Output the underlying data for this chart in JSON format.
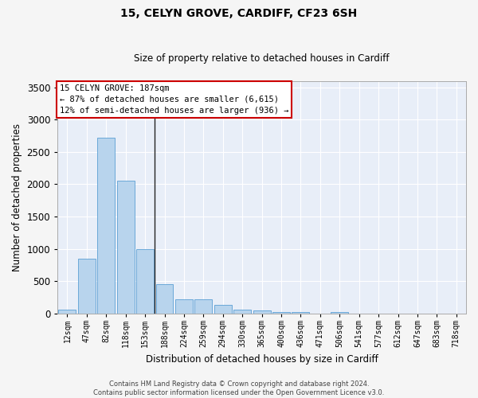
{
  "title": "15, CELYN GROVE, CARDIFF, CF23 6SH",
  "subtitle": "Size of property relative to detached houses in Cardiff",
  "xlabel": "Distribution of detached houses by size in Cardiff",
  "ylabel": "Number of detached properties",
  "categories": [
    "12sqm",
    "47sqm",
    "82sqm",
    "118sqm",
    "153sqm",
    "188sqm",
    "224sqm",
    "259sqm",
    "294sqm",
    "330sqm",
    "365sqm",
    "400sqm",
    "436sqm",
    "471sqm",
    "506sqm",
    "541sqm",
    "577sqm",
    "612sqm",
    "647sqm",
    "683sqm",
    "718sqm"
  ],
  "values": [
    60,
    850,
    2720,
    2060,
    1000,
    450,
    220,
    220,
    135,
    60,
    50,
    30,
    25,
    0,
    20,
    0,
    0,
    0,
    0,
    0,
    0
  ],
  "bar_color": "#b8d4ed",
  "bar_edge_color": "#5a9fd4",
  "vline_x": 4.5,
  "ylim": [
    0,
    3600
  ],
  "yticks": [
    0,
    500,
    1000,
    1500,
    2000,
    2500,
    3000,
    3500
  ],
  "annotation_text_line1": "15 CELYN GROVE: 187sqm",
  "annotation_text_line2": "← 87% of detached houses are smaller (6,615)",
  "annotation_text_line3": "12% of semi-detached houses are larger (936) →",
  "annotation_box_facecolor": "#ffffff",
  "annotation_box_edgecolor": "#cc0000",
  "plot_bg_color": "#e8eef8",
  "grid_color": "#ffffff",
  "title_fontsize": 10,
  "subtitle_fontsize": 8.5,
  "footer_line1": "Contains HM Land Registry data © Crown copyright and database right 2024.",
  "footer_line2": "Contains public sector information licensed under the Open Government Licence v3.0."
}
